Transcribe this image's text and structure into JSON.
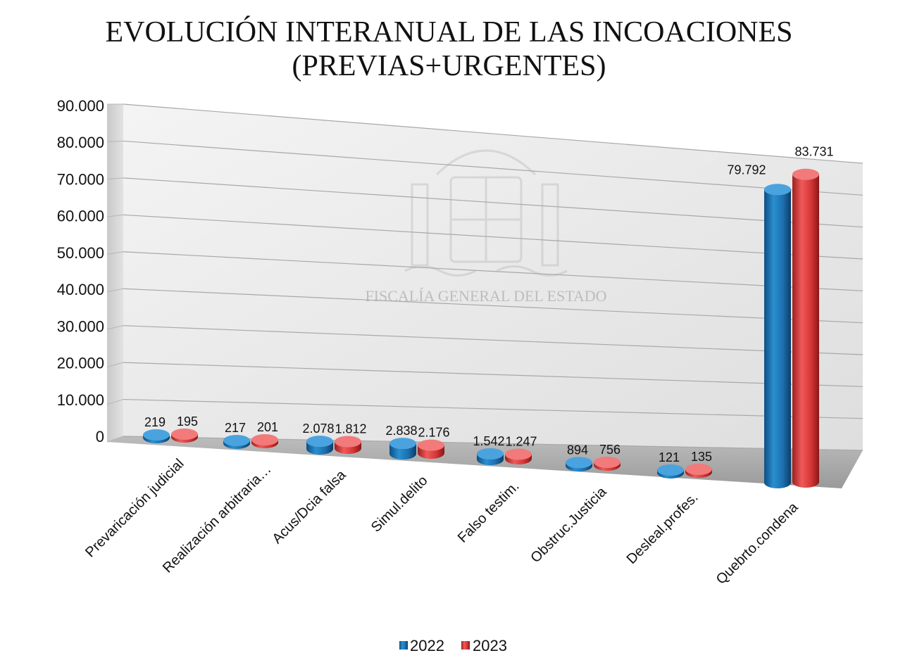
{
  "chart_data": {
    "type": "bar",
    "title_lines": [
      "EVOLUCIÓN INTERANUAL DE LAS INCOACIONES",
      "(PREVIAS+URGENTES)"
    ],
    "categories": [
      "Prevaricación judicial",
      "Realización arbitraria…",
      "Acus/Dcia falsa",
      "Simul.delito",
      "Falso testim.",
      "Obstruc.Justicia",
      "Desleal.profes.",
      "Quebrto.condena"
    ],
    "series": [
      {
        "name": "2022",
        "color": "#1f74b4",
        "values": [
          219,
          217,
          2078,
          2838,
          1542,
          894,
          121,
          79792
        ],
        "labels": [
          "219",
          "217",
          "2.078",
          "2.838",
          "1.542",
          "894",
          "121",
          "79.792"
        ]
      },
      {
        "name": "2023",
        "color": "#d93a3a",
        "values": [
          195,
          201,
          1812,
          2176,
          1247,
          756,
          135,
          83731
        ],
        "labels": [
          "195",
          "201",
          "1.812",
          "2.176",
          "1.247",
          "756",
          "135",
          "83.731"
        ]
      }
    ],
    "ylim": [
      0,
      90000
    ],
    "yticks": [
      "0",
      "10.000",
      "20.000",
      "30.000",
      "40.000",
      "50.000",
      "60.000",
      "70.000",
      "80.000",
      "90.000"
    ],
    "grid": true,
    "legend_position": "bottom",
    "watermark": "FISCALÍA GENERAL DEL ESTADO"
  }
}
